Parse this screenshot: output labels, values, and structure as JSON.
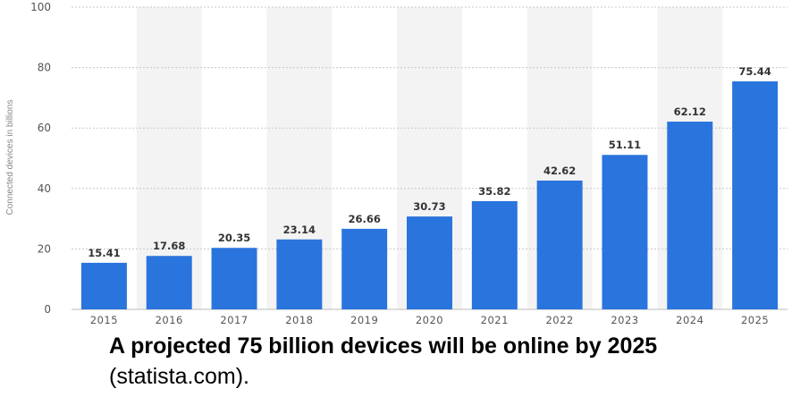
{
  "chart_data": {
    "type": "bar",
    "categories": [
      "2015",
      "2016",
      "2017",
      "2018",
      "2019",
      "2020",
      "2021",
      "2022",
      "2023",
      "2024",
      "2025"
    ],
    "values": [
      15.41,
      17.68,
      20.35,
      23.14,
      26.66,
      30.73,
      35.82,
      42.62,
      51.11,
      62.12,
      75.44
    ],
    "value_labels": [
      "15.41",
      "17.68",
      "20.35",
      "23.14",
      "26.66",
      "30.73",
      "35.82",
      "42.62",
      "51.11",
      "62.12",
      "75.44"
    ],
    "ylabel": "Connected devices in billions",
    "ylim": [
      0,
      100
    ],
    "yticks": [
      0,
      20,
      40,
      60,
      80,
      100
    ],
    "grid": true,
    "bar_color": "#2a74dd"
  },
  "caption": {
    "title": "A projected 75 billion devices will be online by 2025",
    "source": "(statista.com)."
  }
}
